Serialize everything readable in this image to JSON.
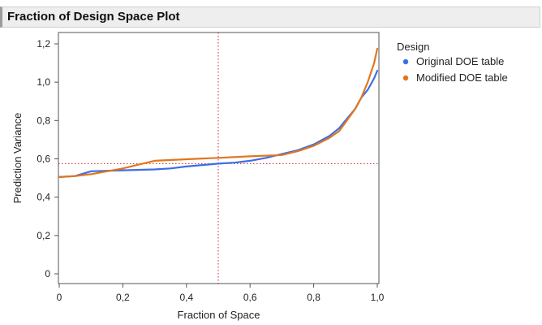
{
  "title": "Fraction of Design Space Plot",
  "chart_data": {
    "type": "line",
    "xlabel": "Fraction of Space",
    "ylabel": "Prediction Variance",
    "xlim": [
      0,
      1
    ],
    "ylim": [
      0,
      1.2
    ],
    "x_ticks": [
      "0",
      "0,2",
      "0,4",
      "0,6",
      "0,8",
      "1,0"
    ],
    "y_ticks": [
      "0",
      "0,2",
      "0,4",
      "0,6",
      "0,8",
      "1,0",
      "1,2"
    ],
    "reference_lines": {
      "x": 0.5,
      "y": 0.575,
      "color": "#cc2222",
      "style": "dotted"
    },
    "grid": false,
    "legend": {
      "title": "Design",
      "placement": "right"
    },
    "series": [
      {
        "name": "Original DOE table",
        "color": "#3a6ee8",
        "x": [
          0,
          0.05,
          0.1,
          0.2,
          0.3,
          0.35,
          0.4,
          0.5,
          0.55,
          0.6,
          0.65,
          0.7,
          0.75,
          0.8,
          0.85,
          0.88,
          0.9,
          0.93,
          0.95,
          0.97,
          0.99,
          1.0
        ],
        "y": [
          0.505,
          0.51,
          0.535,
          0.54,
          0.545,
          0.55,
          0.56,
          0.575,
          0.58,
          0.59,
          0.605,
          0.625,
          0.645,
          0.675,
          0.72,
          0.76,
          0.8,
          0.86,
          0.92,
          0.96,
          1.02,
          1.06
        ]
      },
      {
        "name": "Modified DOE table",
        "color": "#e0771e",
        "x": [
          0,
          0.05,
          0.1,
          0.2,
          0.25,
          0.3,
          0.4,
          0.5,
          0.6,
          0.7,
          0.75,
          0.8,
          0.85,
          0.88,
          0.9,
          0.93,
          0.95,
          0.97,
          0.99,
          1.0
        ],
        "y": [
          0.505,
          0.51,
          0.52,
          0.55,
          0.57,
          0.59,
          0.598,
          0.605,
          0.613,
          0.62,
          0.64,
          0.668,
          0.71,
          0.745,
          0.79,
          0.86,
          0.92,
          1.0,
          1.1,
          1.175
        ]
      }
    ]
  }
}
